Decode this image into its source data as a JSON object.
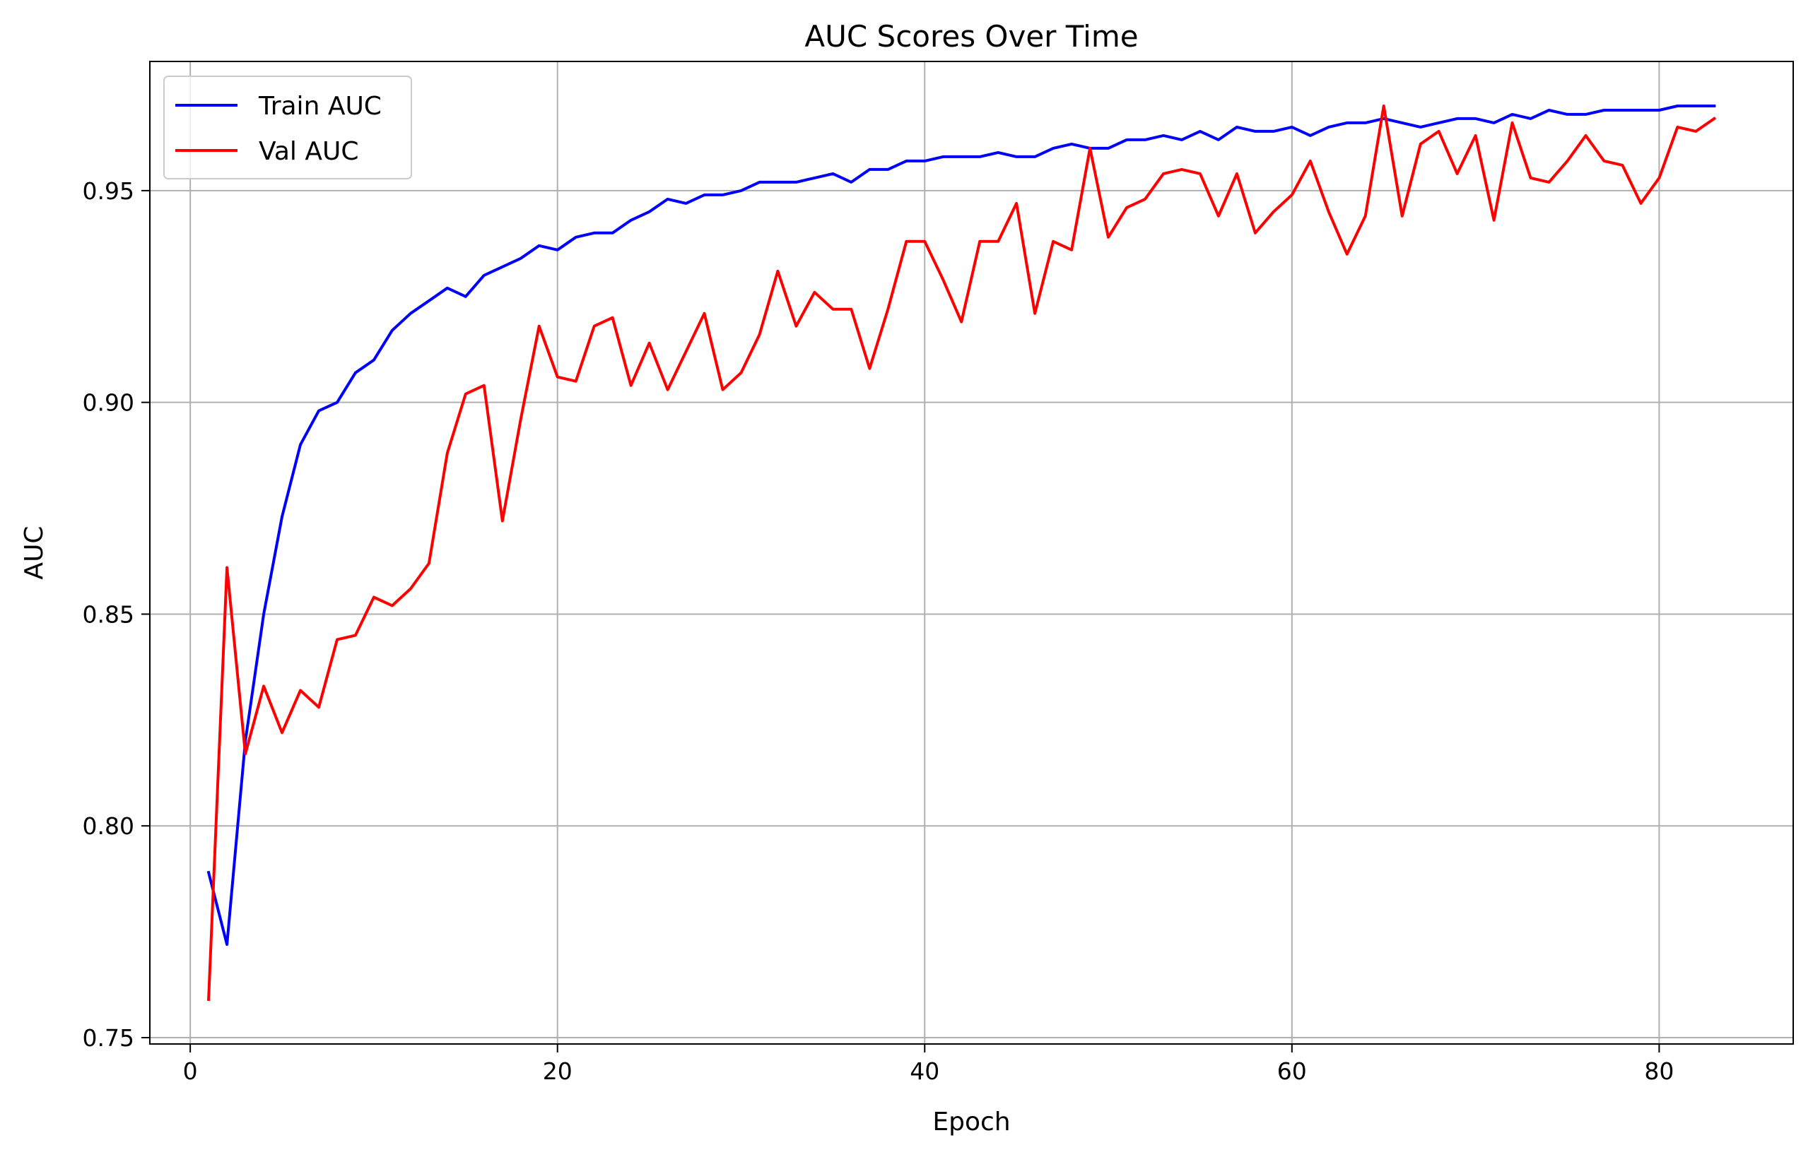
{
  "chart_data": {
    "type": "line",
    "title": "AUC Scores Over Time",
    "xlabel": "Epoch",
    "ylabel": "AUC",
    "xlim": [
      -2.2,
      87.3
    ],
    "ylim": [
      0.7485,
      0.9805
    ],
    "xticks": [
      0,
      20,
      40,
      60,
      80
    ],
    "xtick_labels": [
      "0",
      "20",
      "40",
      "60",
      "80"
    ],
    "yticks": [
      0.75,
      0.8,
      0.85,
      0.9,
      0.95
    ],
    "ytick_labels": [
      "0.75",
      "0.80",
      "0.85",
      "0.90",
      "0.95"
    ],
    "grid": true,
    "legend": "top-left",
    "x": [
      1,
      2,
      3,
      4,
      5,
      6,
      7,
      8,
      9,
      10,
      11,
      12,
      13,
      14,
      15,
      16,
      17,
      18,
      19,
      20,
      21,
      22,
      23,
      24,
      25,
      26,
      27,
      28,
      29,
      30,
      31,
      32,
      33,
      34,
      35,
      36,
      37,
      38,
      39,
      40,
      41,
      42,
      43,
      44,
      45,
      46,
      47,
      48,
      49,
      50,
      51,
      52,
      53,
      54,
      55,
      56,
      57,
      58,
      59,
      60,
      61,
      62,
      63,
      64,
      65,
      66,
      67,
      68,
      69,
      70,
      71,
      72,
      73,
      74,
      75,
      76,
      77,
      78,
      79,
      80,
      81,
      82,
      83
    ],
    "series": [
      {
        "name": "Train AUC",
        "color": "#0000ff",
        "values": [
          0.789,
          0.772,
          0.82,
          0.85,
          0.873,
          0.89,
          0.898,
          0.9,
          0.907,
          0.91,
          0.917,
          0.921,
          0.924,
          0.927,
          0.925,
          0.93,
          0.932,
          0.934,
          0.937,
          0.936,
          0.939,
          0.94,
          0.94,
          0.943,
          0.945,
          0.948,
          0.947,
          0.949,
          0.949,
          0.95,
          0.952,
          0.952,
          0.952,
          0.953,
          0.954,
          0.952,
          0.955,
          0.955,
          0.957,
          0.957,
          0.958,
          0.958,
          0.958,
          0.959,
          0.958,
          0.958,
          0.96,
          0.961,
          0.96,
          0.96,
          0.962,
          0.962,
          0.963,
          0.962,
          0.964,
          0.962,
          0.965,
          0.964,
          0.964,
          0.965,
          0.963,
          0.965,
          0.966,
          0.966,
          0.967,
          0.966,
          0.965,
          0.966,
          0.967,
          0.967,
          0.966,
          0.968,
          0.967,
          0.969,
          0.968,
          0.968,
          0.969,
          0.969,
          0.969,
          0.969,
          0.97,
          0.97,
          0.97
        ]
      },
      {
        "name": "Val AUC",
        "color": "#ff0000",
        "values": [
          0.759,
          0.861,
          0.817,
          0.833,
          0.822,
          0.832,
          0.828,
          0.844,
          0.845,
          0.854,
          0.852,
          0.856,
          0.862,
          0.888,
          0.902,
          0.904,
          0.872,
          0.896,
          0.918,
          0.906,
          0.905,
          0.918,
          0.92,
          0.904,
          0.914,
          0.903,
          0.912,
          0.921,
          0.903,
          0.907,
          0.916,
          0.931,
          0.918,
          0.926,
          0.922,
          0.922,
          0.908,
          0.922,
          0.938,
          0.938,
          0.929,
          0.919,
          0.938,
          0.938,
          0.947,
          0.921,
          0.938,
          0.936,
          0.96,
          0.939,
          0.946,
          0.948,
          0.954,
          0.955,
          0.954,
          0.944,
          0.954,
          0.94,
          0.945,
          0.949,
          0.957,
          0.945,
          0.935,
          0.944,
          0.97,
          0.944,
          0.961,
          0.964,
          0.954,
          0.963,
          0.943,
          0.966,
          0.953,
          0.952,
          0.957,
          0.963,
          0.957,
          0.956,
          0.947,
          0.953,
          0.965,
          0.964,
          0.967
        ]
      }
    ]
  }
}
